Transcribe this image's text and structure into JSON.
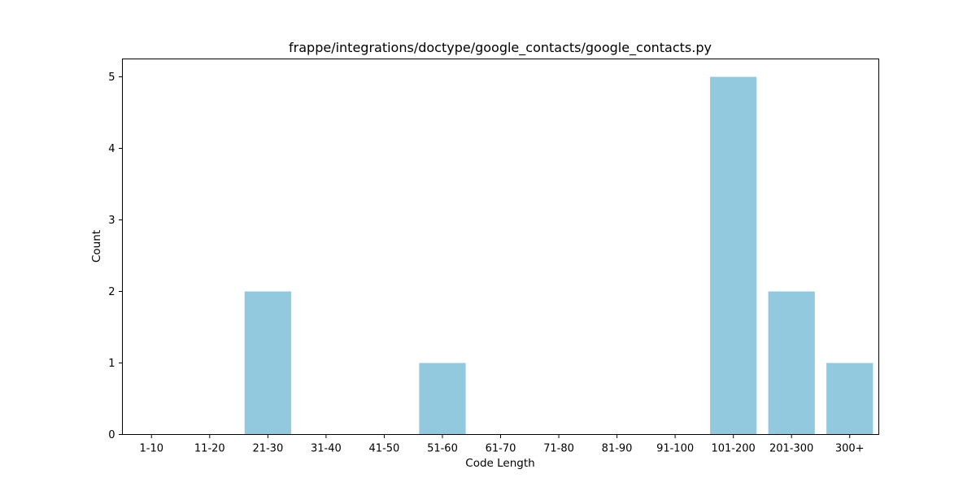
{
  "chart_data": {
    "type": "bar",
    "title": "frappe/integrations/doctype/google_contacts/google_contacts.py",
    "xlabel": "Code Length",
    "ylabel": "Count",
    "categories": [
      "1-10",
      "11-20",
      "21-30",
      "31-40",
      "41-50",
      "51-60",
      "61-70",
      "71-80",
      "81-90",
      "91-100",
      "101-200",
      "201-300",
      "300+"
    ],
    "values": [
      0,
      0,
      2,
      0,
      0,
      1,
      0,
      0,
      0,
      0,
      5,
      2,
      1
    ],
    "ylim": [
      0,
      5.25
    ],
    "yticks": [
      0,
      1,
      2,
      3,
      4,
      5
    ],
    "grid": false,
    "bar_color": "#92c9de"
  }
}
